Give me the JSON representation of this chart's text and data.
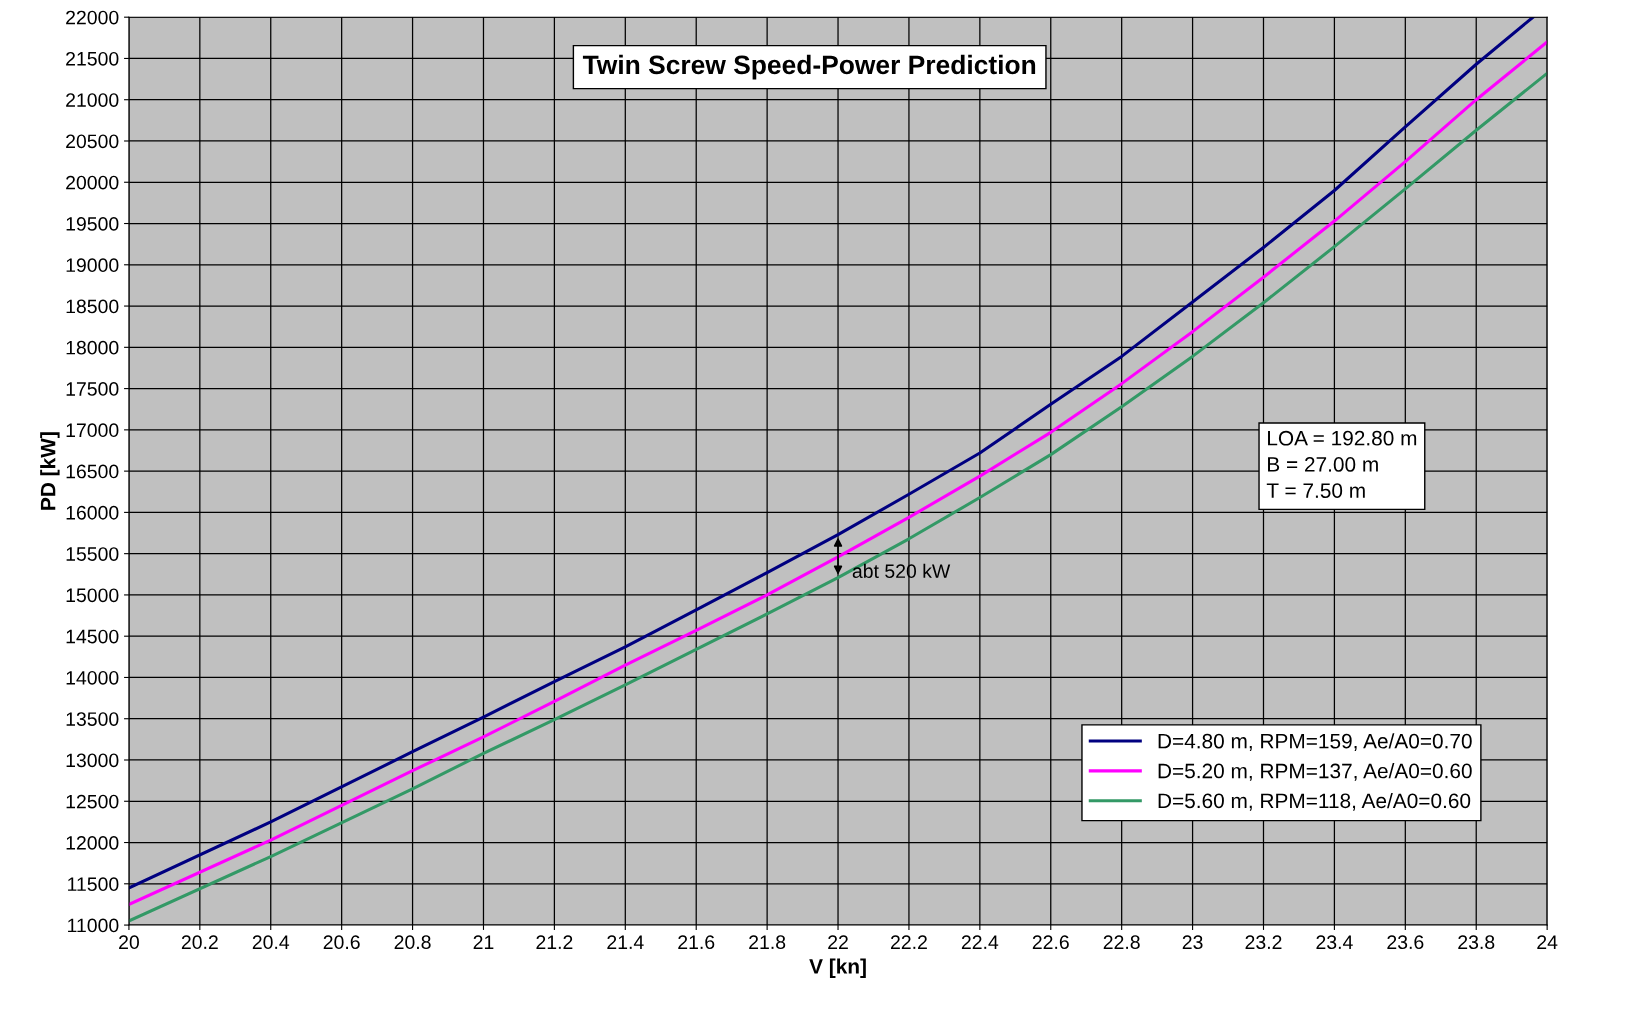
{
  "chart_data": {
    "type": "line",
    "title": "Twin Screw Speed-Power Prediction",
    "xlabel": "V [kn]",
    "ylabel": "PD [kW]",
    "x": [
      20,
      20.4,
      20.8,
      21,
      21.2,
      21.4,
      21.6,
      21.8,
      22,
      22.2,
      22.4,
      22.6,
      22.8,
      23,
      23.2,
      23.4,
      23.6,
      23.8,
      24
    ],
    "series": [
      {
        "name": "D=4.80 m, RPM=159, Ae/A0=0.70",
        "color": "#000080",
        "x": [
          20,
          20.4,
          20.8,
          21,
          21.2,
          21.4,
          21.6,
          21.8,
          22,
          22.2,
          22.4,
          22.6,
          22.8,
          23,
          23.2,
          23.4,
          23.6,
          23.8,
          23.96
        ],
        "values": [
          11450,
          12250,
          13100,
          13520,
          13950,
          14370,
          14820,
          15270,
          15730,
          16220,
          16720,
          17310,
          17890,
          18550,
          19210,
          19900,
          20670,
          21430,
          22000
        ]
      },
      {
        "name": "D=5.20 m, RPM=137, Ae/A0=0.60",
        "color": "#ff00ff",
        "values": [
          11250,
          12030,
          12870,
          13280,
          13710,
          14150,
          14570,
          15000,
          15460,
          15940,
          16440,
          16970,
          17560,
          18190,
          18850,
          19530,
          20250,
          21000,
          21700
        ]
      },
      {
        "name": "D=5.60 m, RPM=118, Ae/A0=0.60",
        "color": "#339966",
        "values": [
          11050,
          11830,
          12650,
          13080,
          13490,
          13910,
          14340,
          14770,
          15210,
          15680,
          16180,
          16700,
          17280,
          17890,
          18540,
          19220,
          19920,
          20630,
          21320
        ]
      }
    ],
    "xlim": [
      20,
      24
    ],
    "xticks": [
      20,
      20.2,
      20.4,
      20.6,
      20.8,
      21,
      21.2,
      21.4,
      21.6,
      21.8,
      22,
      22.2,
      22.4,
      22.6,
      22.8,
      23,
      23.2,
      23.4,
      23.6,
      23.8,
      24
    ],
    "ylim": [
      11000,
      22000
    ],
    "yticks": [
      11000,
      11500,
      12000,
      12500,
      13000,
      13500,
      14000,
      14500,
      15000,
      15500,
      16000,
      16500,
      17000,
      17500,
      18000,
      18500,
      19000,
      19500,
      20000,
      20500,
      21000,
      21500,
      22000
    ],
    "annotations": [
      {
        "text": "abt 520 kW",
        "x": 22,
        "y": 15470
      },
      "LOA = 192.80 m\nB = 27.00 m\nT = 7.50 m"
    ],
    "grid": true,
    "legend": "bottom right",
    "marker": "none",
    "line_style": "solid"
  }
}
